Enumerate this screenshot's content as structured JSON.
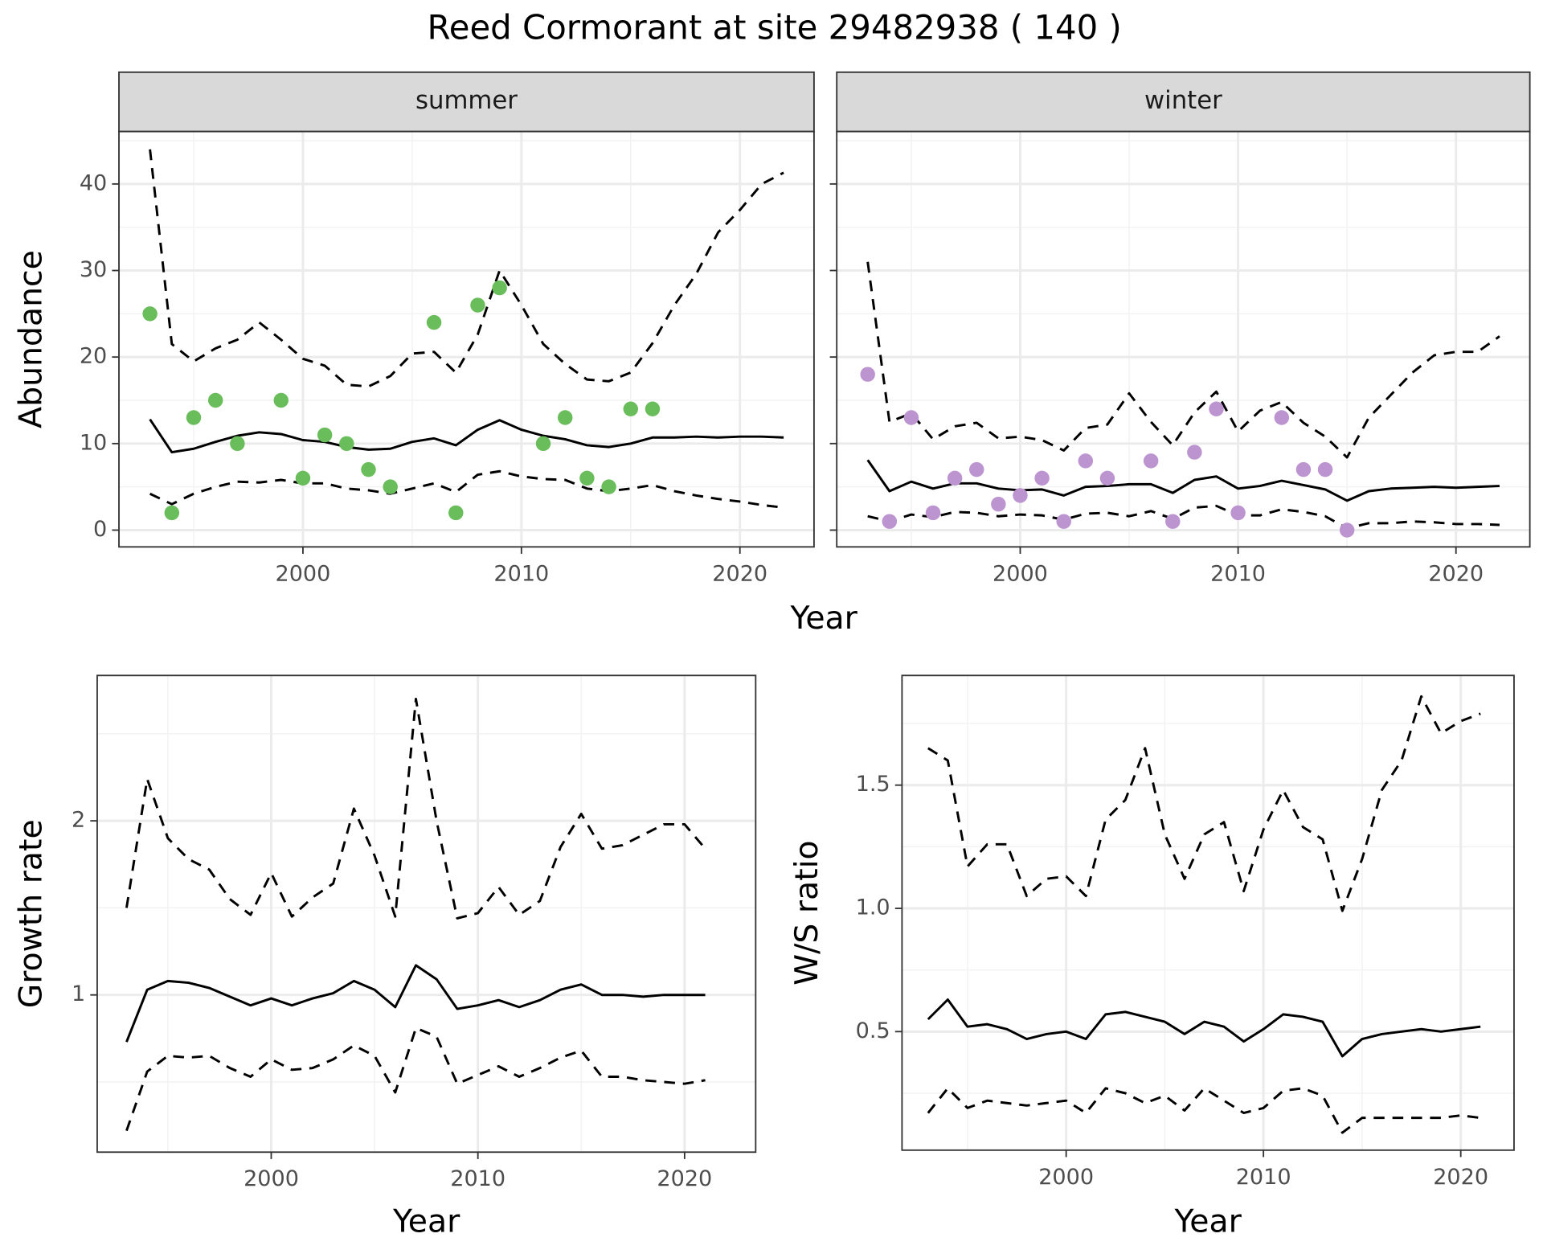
{
  "title": "Reed Cormorant at site 29482938 ( 140 )",
  "chart_data": [
    {
      "type": "line",
      "x_label": "Year",
      "y_label": "Abundance",
      "xlim": [
        1991.58,
        2023.39
      ],
      "ylim": [
        -1.94,
        46.06
      ],
      "xticks": [
        2000,
        2010,
        2020
      ],
      "yticks": [
        0,
        10,
        20,
        30,
        40
      ],
      "xminor": [
        1995,
        2005,
        2015
      ],
      "yminor": [
        5,
        15,
        25,
        35,
        45
      ],
      "grid": true,
      "panels": [
        {
          "facet": "summer",
          "x": [
            1993,
            1994,
            1995,
            1996,
            1997,
            1998,
            1999,
            2000,
            2001,
            2002,
            2003,
            2004,
            2005,
            2006,
            2007,
            2008,
            2009,
            2010,
            2011,
            2012,
            2013,
            2014,
            2015,
            2016,
            2017,
            2018,
            2019,
            2020,
            2021,
            2022
          ],
          "series": [
            {
              "linetype": "dashed",
              "color": "#000000",
              "values": [
                44,
                21.5,
                19.5,
                21,
                22,
                24,
                22,
                19.8,
                19,
                16.8,
                16.6,
                17.8,
                20.4,
                20.6,
                18.2,
                22.6,
                30,
                26,
                21.5,
                19.2,
                17.4,
                17.2,
                18.2,
                21.6,
                26,
                29.6,
                34.4,
                37,
                40,
                41.3
              ]
            },
            {
              "linetype": "solid",
              "color": "#000000",
              "values": [
                12.8,
                9.0,
                9.4,
                10.2,
                10.9,
                11.3,
                11.1,
                10.4,
                10.2,
                9.6,
                9.3,
                9.4,
                10.2,
                10.6,
                9.8,
                11.6,
                12.7,
                11.6,
                10.9,
                10.5,
                9.8,
                9.6,
                10.0,
                10.7,
                10.7,
                10.8,
                10.7,
                10.8,
                10.8,
                10.7
              ]
            },
            {
              "linetype": "dashed",
              "color": "#000000",
              "values": [
                4.2,
                3.0,
                4.2,
                5.0,
                5.6,
                5.5,
                5.8,
                5.4,
                5.4,
                4.8,
                4.6,
                4.2,
                4.8,
                5.4,
                4.4,
                6.4,
                6.8,
                6.2,
                5.9,
                5.8,
                4.8,
                4.5,
                4.8,
                5.2,
                4.5,
                4.0,
                3.6,
                3.3,
                2.9,
                2.6
              ]
            },
            {
              "linetype": "points",
              "color": "#6abd5b",
              "x": [
                1993,
                1994,
                1995,
                1996,
                1997,
                1999,
                2000,
                2001,
                2002,
                2003,
                2004,
                2006,
                2007,
                2008,
                2009,
                2011,
                2012,
                2013,
                2014,
                2015,
                2016
              ],
              "values": [
                25,
                2,
                13,
                15,
                10,
                15,
                6,
                11,
                10,
                7,
                5,
                24,
                2,
                26,
                28,
                10,
                13,
                6,
                5,
                14,
                14
              ]
            }
          ]
        },
        {
          "facet": "winter",
          "x": [
            1993,
            1994,
            1995,
            1996,
            1997,
            1998,
            1999,
            2000,
            2001,
            2002,
            2003,
            2004,
            2005,
            2006,
            2007,
            2008,
            2009,
            2010,
            2011,
            2012,
            2013,
            2014,
            2015,
            2016,
            2017,
            2018,
            2019,
            2020,
            2021,
            2022
          ],
          "series": [
            {
              "linetype": "dashed",
              "color": "#000000",
              "values": [
                31,
                12.5,
                13.5,
                10.5,
                12,
                12.4,
                10.6,
                10.8,
                10.4,
                9.2,
                11.8,
                12.2,
                15.8,
                12.5,
                9.8,
                13.6,
                16,
                11.4,
                13.8,
                14.8,
                12.4,
                10.8,
                8.4,
                13,
                15.6,
                18.2,
                20.2,
                20.6,
                20.6,
                22.4
              ]
            },
            {
              "linetype": "solid",
              "color": "#000000",
              "values": [
                8.1,
                4.5,
                5.6,
                4.8,
                5.4,
                5.4,
                4.8,
                4.6,
                4.7,
                4.0,
                5.0,
                5.1,
                5.3,
                5.3,
                4.3,
                5.8,
                6.2,
                4.8,
                5.1,
                5.7,
                5.2,
                4.7,
                3.4,
                4.5,
                4.8,
                4.9,
                5.0,
                4.9,
                5.0,
                5.1
              ]
            },
            {
              "linetype": "dashed",
              "color": "#000000",
              "values": [
                1.6,
                1.0,
                1.8,
                1.5,
                2.1,
                2.0,
                1.6,
                1.8,
                1.7,
                1.2,
                1.9,
                2.0,
                1.6,
                2.2,
                1.3,
                2.6,
                2.8,
                1.7,
                1.7,
                2.4,
                2.1,
                1.6,
                0.2,
                0.8,
                0.8,
                1.0,
                0.9,
                0.7,
                0.7,
                0.6
              ]
            },
            {
              "linetype": "points",
              "color": "#bc94d0",
              "x": [
                1993,
                1994,
                1995,
                1996,
                1997,
                1998,
                1999,
                2000,
                2001,
                2002,
                2003,
                2004,
                2006,
                2007,
                2008,
                2009,
                2010,
                2012,
                2013,
                2014,
                2015
              ],
              "values": [
                18,
                1,
                13,
                2,
                6,
                7,
                3,
                4,
                6,
                1,
                8,
                6,
                8,
                1,
                9,
                14,
                2,
                13,
                7,
                7,
                0
              ]
            }
          ]
        }
      ]
    },
    {
      "type": "line",
      "x_label": "Year",
      "y_label": "Growth rate",
      "xlim": [
        1991.58,
        2023.44
      ],
      "ylim": [
        0.097,
        2.835
      ],
      "xticks": [
        2000,
        2010,
        2020
      ],
      "yticks": [
        1,
        2
      ],
      "xminor": [
        1995,
        2005,
        2015
      ],
      "yminor": [
        0.5,
        1.5,
        2.5
      ],
      "grid": true,
      "x": [
        1993,
        1994,
        1995,
        1996,
        1997,
        1998,
        1999,
        2000,
        2001,
        2002,
        2003,
        2004,
        2005,
        2006,
        2007,
        2008,
        2009,
        2010,
        2011,
        2012,
        2013,
        2014,
        2015,
        2016,
        2017,
        2018,
        2019,
        2020,
        2021
      ],
      "series": [
        {
          "linetype": "dashed",
          "color": "#000000",
          "values": [
            1.5,
            2.24,
            1.9,
            1.78,
            1.72,
            1.55,
            1.46,
            1.7,
            1.45,
            1.56,
            1.64,
            2.07,
            1.8,
            1.45,
            2.7,
            2.0,
            1.44,
            1.47,
            1.62,
            1.46,
            1.54,
            1.85,
            2.04,
            1.84,
            1.86,
            1.92,
            1.98,
            1.98,
            1.84
          ]
        },
        {
          "linetype": "solid",
          "color": "#000000",
          "values": [
            0.73,
            1.03,
            1.08,
            1.07,
            1.04,
            0.99,
            0.94,
            0.98,
            0.94,
            0.98,
            1.01,
            1.08,
            1.03,
            0.93,
            1.17,
            1.09,
            0.92,
            0.94,
            0.97,
            0.93,
            0.97,
            1.03,
            1.06,
            1.0,
            1.0,
            0.99,
            1.0,
            1.0,
            1.0
          ]
        },
        {
          "linetype": "dashed",
          "color": "#000000",
          "values": [
            0.22,
            0.56,
            0.65,
            0.64,
            0.65,
            0.58,
            0.53,
            0.63,
            0.57,
            0.58,
            0.63,
            0.71,
            0.65,
            0.44,
            0.81,
            0.76,
            0.49,
            0.54,
            0.59,
            0.53,
            0.58,
            0.64,
            0.68,
            0.53,
            0.53,
            0.51,
            0.5,
            0.49,
            0.51
          ]
        }
      ]
    },
    {
      "type": "line",
      "x_label": "Year",
      "y_label": "W/S ratio",
      "xlim": [
        1991.68,
        2022.7
      ],
      "ylim": [
        0.019,
        1.945
      ],
      "xticks": [
        2000,
        2010,
        2020
      ],
      "yticks": [
        0.5,
        {
          "value": 1,
          "label": "1.0"
        },
        1.5
      ],
      "xminor": [
        1995,
        2005,
        2015
      ],
      "yminor": [
        0.25,
        0.75,
        1.25,
        1.75
      ],
      "grid": true,
      "x": [
        1993,
        1994,
        1995,
        1996,
        1997,
        1998,
        1999,
        2000,
        2001,
        2002,
        2003,
        2004,
        2005,
        2006,
        2007,
        2008,
        2009,
        2010,
        2011,
        2012,
        2013,
        2014,
        2015,
        2016,
        2017,
        2018,
        2019,
        2020,
        2021
      ],
      "series": [
        {
          "linetype": "dashed",
          "color": "#000000",
          "values": [
            1.65,
            1.6,
            1.17,
            1.26,
            1.26,
            1.05,
            1.12,
            1.13,
            1.05,
            1.36,
            1.44,
            1.65,
            1.3,
            1.12,
            1.3,
            1.35,
            1.07,
            1.32,
            1.48,
            1.33,
            1.28,
            0.99,
            1.2,
            1.48,
            1.6,
            1.86,
            1.71,
            1.76,
            1.79
          ]
        },
        {
          "linetype": "solid",
          "color": "#000000",
          "values": [
            0.55,
            0.63,
            0.52,
            0.53,
            0.51,
            0.47,
            0.49,
            0.5,
            0.47,
            0.57,
            0.58,
            0.56,
            0.54,
            0.49,
            0.54,
            0.52,
            0.46,
            0.51,
            0.57,
            0.56,
            0.54,
            0.4,
            0.47,
            0.49,
            0.5,
            0.51,
            0.5,
            0.51,
            0.52
          ]
        },
        {
          "linetype": "dashed",
          "color": "#000000",
          "values": [
            0.17,
            0.27,
            0.19,
            0.22,
            0.21,
            0.2,
            0.21,
            0.22,
            0.17,
            0.27,
            0.25,
            0.21,
            0.24,
            0.18,
            0.27,
            0.22,
            0.17,
            0.19,
            0.26,
            0.27,
            0.24,
            0.09,
            0.15,
            0.15,
            0.15,
            0.15,
            0.15,
            0.16,
            0.15
          ]
        }
      ]
    }
  ]
}
